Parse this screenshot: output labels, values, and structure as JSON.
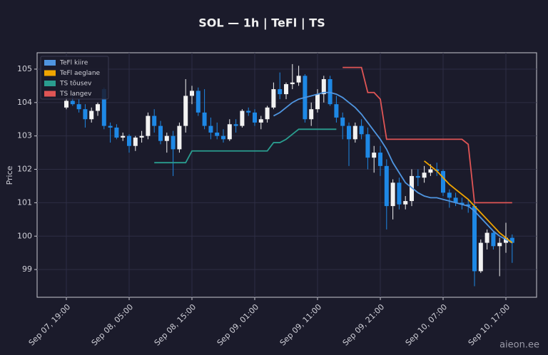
{
  "chart_data": {
    "type": "candlestick",
    "title": "SOL — 1h  |  TeFl  |  TS",
    "y_label": "Price",
    "watermark": "aieon.ee",
    "x": [
      "Sep 07, 19:00",
      "Sep 07, 20:00",
      "Sep 07, 21:00",
      "Sep 07, 22:00",
      "Sep 07, 23:00",
      "Sep 08, 00:00",
      "Sep 08, 01:00",
      "Sep 08, 02:00",
      "Sep 08, 03:00",
      "Sep 08, 04:00",
      "Sep 08, 05:00",
      "Sep 08, 06:00",
      "Sep 08, 07:00",
      "Sep 08, 08:00",
      "Sep 08, 09:00",
      "Sep 08, 10:00",
      "Sep 08, 11:00",
      "Sep 08, 12:00",
      "Sep 08, 13:00",
      "Sep 08, 14:00",
      "Sep 08, 15:00",
      "Sep 08, 16:00",
      "Sep 08, 17:00",
      "Sep 08, 18:00",
      "Sep 08, 19:00",
      "Sep 08, 20:00",
      "Sep 08, 21:00",
      "Sep 08, 22:00",
      "Sep 08, 23:00",
      "Sep 09, 00:00",
      "Sep 09, 01:00",
      "Sep 09, 02:00",
      "Sep 09, 03:00",
      "Sep 09, 04:00",
      "Sep 09, 05:00",
      "Sep 09, 06:00",
      "Sep 09, 07:00",
      "Sep 09, 08:00",
      "Sep 09, 09:00",
      "Sep 09, 10:00",
      "Sep 09, 11:00",
      "Sep 09, 12:00",
      "Sep 09, 13:00",
      "Sep 09, 14:00",
      "Sep 09, 15:00",
      "Sep 09, 16:00",
      "Sep 09, 17:00",
      "Sep 09, 18:00",
      "Sep 09, 19:00",
      "Sep 09, 20:00",
      "Sep 09, 21:00",
      "Sep 09, 22:00",
      "Sep 09, 23:00",
      "Sep 10, 00:00",
      "Sep 10, 01:00",
      "Sep 10, 02:00",
      "Sep 10, 03:00",
      "Sep 10, 04:00",
      "Sep 10, 05:00",
      "Sep 10, 06:00",
      "Sep 10, 07:00",
      "Sep 10, 08:00",
      "Sep 10, 09:00",
      "Sep 10, 10:00",
      "Sep 10, 11:00",
      "Sep 10, 12:00",
      "Sep 10, 13:00",
      "Sep 10, 14:00",
      "Sep 10, 15:00",
      "Sep 10, 16:00",
      "Sep 10, 17:00",
      "Sep 10, 18:00"
    ],
    "open": [
      103.85,
      104.05,
      103.95,
      103.8,
      103.5,
      103.75,
      104.4,
      103.3,
      103.25,
      102.95,
      103.0,
      102.7,
      102.95,
      103.0,
      103.6,
      103.3,
      102.85,
      103.0,
      102.6,
      103.3,
      104.2,
      104.35,
      103.7,
      103.3,
      103.1,
      103.0,
      102.9,
      103.35,
      103.3,
      103.75,
      103.7,
      103.4,
      103.5,
      103.85,
      104.4,
      104.25,
      104.55,
      104.6,
      104.8,
      103.5,
      103.8,
      104.25,
      104.7,
      103.95,
      103.55,
      103.3,
      102.9,
      103.3,
      103.05,
      102.35,
      102.5,
      102.1,
      100.9,
      101.6,
      100.95,
      101.05,
      101.8,
      101.75,
      101.9,
      102.0,
      101.95,
      101.3,
      101.15,
      101.0,
      100.95,
      100.9,
      98.95,
      99.8,
      100.1,
      99.7,
      99.8,
      99.95
    ],
    "high": [
      104.15,
      104.2,
      104.1,
      103.95,
      103.85,
      104.0,
      104.45,
      103.4,
      103.35,
      103.1,
      103.05,
      103.0,
      103.15,
      103.7,
      103.8,
      103.45,
      103.1,
      103.15,
      103.4,
      104.7,
      104.5,
      104.45,
      104.4,
      103.55,
      103.4,
      103.2,
      103.5,
      103.5,
      103.8,
      103.85,
      103.8,
      103.6,
      103.9,
      104.6,
      104.9,
      104.6,
      105.15,
      105.1,
      104.85,
      104.0,
      104.4,
      104.8,
      104.8,
      104.2,
      103.7,
      103.4,
      103.4,
      103.5,
      103.25,
      102.7,
      102.7,
      102.3,
      101.7,
      101.75,
      101.2,
      102.0,
      102.0,
      102.1,
      102.15,
      102.2,
      102.0,
      101.4,
      101.3,
      101.15,
      101.1,
      101.0,
      99.9,
      100.2,
      100.15,
      99.95,
      100.4,
      100.05
    ],
    "low": [
      103.8,
      103.9,
      103.7,
      103.25,
      103.4,
      103.6,
      103.2,
      102.8,
      102.9,
      102.85,
      102.5,
      102.55,
      102.8,
      102.9,
      103.1,
      102.75,
      102.5,
      101.8,
      102.5,
      103.1,
      103.95,
      103.6,
      103.2,
      102.9,
      102.9,
      102.8,
      102.85,
      103.1,
      103.25,
      103.6,
      103.3,
      103.2,
      103.4,
      103.8,
      104.1,
      104.1,
      104.4,
      104.5,
      103.4,
      103.3,
      103.7,
      104.0,
      103.9,
      103.4,
      102.9,
      102.1,
      102.8,
      102.9,
      102.0,
      101.9,
      101.8,
      100.2,
      100.5,
      100.8,
      100.8,
      100.9,
      101.5,
      101.6,
      101.8,
      101.8,
      101.2,
      100.85,
      100.9,
      100.8,
      100.7,
      98.5,
      98.9,
      99.6,
      99.6,
      98.8,
      99.5,
      99.2
    ],
    "close": [
      104.05,
      103.95,
      103.8,
      103.5,
      103.75,
      103.95,
      103.3,
      103.25,
      102.95,
      103.0,
      102.7,
      102.95,
      103.0,
      103.6,
      103.3,
      102.85,
      103.0,
      102.6,
      103.3,
      104.2,
      104.35,
      103.7,
      103.3,
      103.1,
      103.0,
      102.9,
      103.35,
      103.3,
      103.75,
      103.7,
      103.4,
      103.5,
      103.85,
      104.4,
      104.25,
      104.55,
      104.6,
      104.8,
      103.5,
      103.8,
      104.25,
      104.7,
      103.95,
      103.55,
      103.3,
      102.9,
      103.3,
      103.05,
      102.35,
      102.5,
      102.1,
      100.9,
      101.6,
      100.95,
      101.05,
      101.8,
      101.75,
      101.9,
      102.0,
      101.95,
      101.3,
      101.15,
      101.0,
      100.95,
      100.9,
      98.95,
      99.8,
      100.1,
      99.7,
      99.8,
      99.95,
      99.8
    ],
    "up_color": "#f2f2f2",
    "down_color": "#1e88e5",
    "series": [
      {
        "name": "TeFl kiire",
        "color": "#4f95e0",
        "values": [
          null,
          null,
          null,
          null,
          null,
          null,
          null,
          null,
          null,
          null,
          null,
          null,
          null,
          null,
          null,
          null,
          null,
          null,
          null,
          null,
          null,
          null,
          null,
          null,
          null,
          null,
          null,
          null,
          null,
          null,
          null,
          null,
          null,
          103.6,
          103.7,
          103.85,
          104.0,
          104.1,
          104.15,
          104.2,
          104.25,
          104.3,
          104.3,
          104.25,
          104.15,
          104.0,
          103.85,
          103.65,
          103.4,
          103.15,
          102.9,
          102.6,
          102.2,
          101.9,
          101.6,
          101.45,
          101.3,
          101.2,
          101.15,
          101.15,
          101.1,
          101.05,
          101.0,
          100.95,
          100.9,
          100.75,
          100.55,
          100.35,
          100.15,
          100.0,
          99.9,
          99.8
        ]
      },
      {
        "name": "TeFl aeglane",
        "color": "#f0a500",
        "values": [
          null,
          null,
          null,
          null,
          null,
          null,
          null,
          null,
          null,
          null,
          null,
          null,
          null,
          null,
          null,
          null,
          null,
          null,
          null,
          null,
          null,
          null,
          null,
          null,
          null,
          null,
          null,
          null,
          null,
          null,
          null,
          null,
          null,
          null,
          null,
          null,
          null,
          null,
          null,
          null,
          null,
          null,
          null,
          null,
          null,
          null,
          null,
          null,
          null,
          null,
          null,
          null,
          null,
          null,
          null,
          null,
          null,
          102.25,
          102.1,
          101.95,
          101.75,
          101.55,
          101.4,
          101.25,
          101.1,
          100.9,
          100.7,
          100.5,
          100.3,
          100.1,
          99.95,
          99.8
        ]
      },
      {
        "name": "TS tõusev",
        "color": "#2a9d8f",
        "values": [
          null,
          null,
          null,
          null,
          null,
          null,
          null,
          null,
          null,
          null,
          null,
          null,
          null,
          null,
          102.2,
          102.2,
          102.2,
          102.2,
          102.2,
          102.2,
          102.55,
          102.55,
          102.55,
          102.55,
          102.55,
          102.55,
          102.55,
          102.55,
          102.55,
          102.55,
          102.55,
          102.55,
          102.55,
          102.8,
          102.8,
          102.9,
          103.05,
          103.2,
          103.2,
          103.2,
          103.2,
          103.2,
          103.2,
          103.2,
          null,
          null,
          null,
          null,
          null,
          null,
          null,
          null,
          null,
          null,
          null,
          null,
          null,
          null,
          null,
          null,
          null,
          null,
          null,
          null,
          null,
          null,
          null,
          null,
          null,
          null,
          null,
          null
        ]
      },
      {
        "name": "TS langev",
        "color": "#e05555",
        "values": [
          null,
          null,
          null,
          null,
          null,
          null,
          null,
          null,
          null,
          null,
          null,
          null,
          null,
          null,
          null,
          null,
          null,
          null,
          null,
          null,
          null,
          null,
          null,
          null,
          null,
          null,
          null,
          null,
          null,
          null,
          null,
          null,
          null,
          null,
          null,
          null,
          null,
          null,
          null,
          null,
          null,
          null,
          null,
          null,
          105.05,
          105.05,
          105.05,
          105.05,
          104.3,
          104.3,
          104.1,
          102.9,
          102.9,
          102.9,
          102.9,
          102.9,
          102.9,
          102.9,
          102.9,
          102.9,
          102.9,
          102.9,
          102.9,
          102.9,
          102.75,
          101.0,
          101.0,
          101.0,
          101.0,
          101.0,
          101.0,
          101.0
        ]
      }
    ],
    "xticks": [
      "Sep 07, 19:00",
      "Sep 08, 05:00",
      "Sep 08, 15:00",
      "Sep 09, 01:00",
      "Sep 09, 11:00",
      "Sep 09, 21:00",
      "Sep 10, 07:00",
      "Sep 10, 17:00"
    ],
    "ylim": [
      98.17,
      105.49
    ],
    "yticks": [
      99,
      100,
      101,
      102,
      103,
      104,
      105
    ],
    "grid": true,
    "legend": "upper left"
  }
}
